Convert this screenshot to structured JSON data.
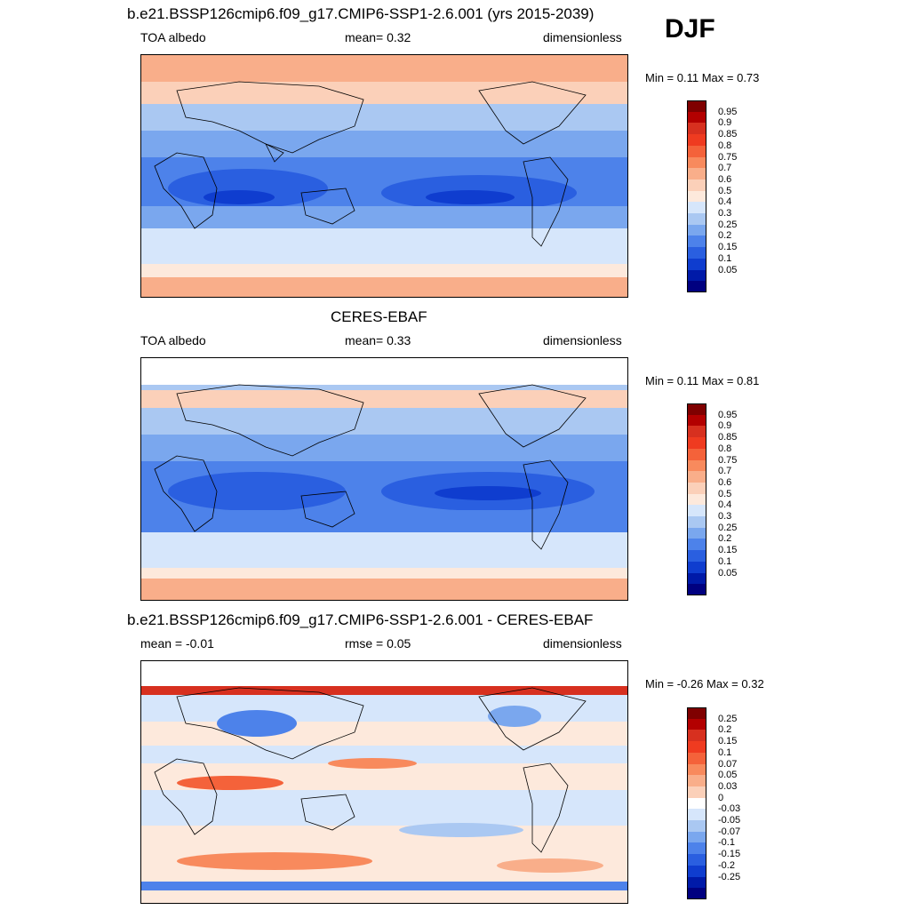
{
  "season": "DJF",
  "panels": [
    {
      "title": "b.e21.BSSP126cmip6.f09_g17.CMIP6-SSP1-2.6.001 (yrs 2015-2039)",
      "left_label": "TOA albedo",
      "mid_label": "mean=   0.32",
      "right_label": "dimensionless",
      "minmax": "Min =   0.11 Max =   0.73",
      "colorbar": {
        "labels": [
          "0.95",
          "0.9",
          "0.85",
          "0.8",
          "0.75",
          "0.7",
          "0.6",
          "0.5",
          "0.4",
          "0.3",
          "0.25",
          "0.2",
          "0.15",
          "0.1",
          "0.05"
        ],
        "colors": [
          "#7f0000",
          "#b30000",
          "#d7301f",
          "#ef3b20",
          "#f4623a",
          "#f88a5d",
          "#f9ae8a",
          "#fbd0b9",
          "#fde9dc",
          "#d6e6fb",
          "#aac8f2",
          "#7aa7ee",
          "#4d82ea",
          "#2a5fe0",
          "#0f3dcf",
          "#001aa8",
          "#000080"
        ]
      }
    },
    {
      "title": "CERES-EBAF",
      "left_label": "TOA albedo",
      "mid_label": "mean=   0.33",
      "right_label": "dimensionless",
      "minmax": "Min =   0.11 Max =   0.81",
      "colorbar": {
        "labels": [
          "0.95",
          "0.9",
          "0.85",
          "0.8",
          "0.75",
          "0.7",
          "0.6",
          "0.5",
          "0.4",
          "0.3",
          "0.25",
          "0.2",
          "0.15",
          "0.1",
          "0.05"
        ],
        "colors": [
          "#7f0000",
          "#b30000",
          "#d7301f",
          "#ef3b20",
          "#f4623a",
          "#f88a5d",
          "#f9ae8a",
          "#fbd0b9",
          "#fde9dc",
          "#d6e6fb",
          "#aac8f2",
          "#7aa7ee",
          "#4d82ea",
          "#2a5fe0",
          "#0f3dcf",
          "#001aa8",
          "#000080"
        ]
      }
    },
    {
      "title": "b.e21.BSSP126cmip6.f09_g17.CMIP6-SSP1-2.6.001 - CERES-EBAF",
      "left_label": "mean =  -0.01",
      "mid_label": "rmse =   0.05",
      "right_label": "dimensionless",
      "minmax": "Min =  -0.26 Max =   0.32",
      "colorbar": {
        "labels": [
          "0.25",
          "0.2",
          "0.15",
          "0.1",
          "0.07",
          "0.05",
          "0.03",
          "0",
          "-0.03",
          "-0.05",
          "-0.07",
          "-0.1",
          "-0.15",
          "-0.2",
          "-0.25"
        ],
        "colors": [
          "#7f0000",
          "#b30000",
          "#d7301f",
          "#ef3b20",
          "#f4623a",
          "#f88a5d",
          "#f9ae8a",
          "#fbd0b9",
          "#ffffff",
          "#d6e6fb",
          "#aac8f2",
          "#7aa7ee",
          "#4d82ea",
          "#2a5fe0",
          "#0f3dcf",
          "#001aa8",
          "#000080"
        ]
      }
    }
  ],
  "style": {
    "land_outline": "#000000",
    "polar_high": "#f4a582",
    "tropical_low": "#1f4fd6",
    "mid_blue": "#6e9be8",
    "pale_blue": "#d6e6fb",
    "diff_positive": "#f4623a",
    "diff_negative": "#2a5fe0",
    "diff_neutral": "#fde9dc"
  }
}
